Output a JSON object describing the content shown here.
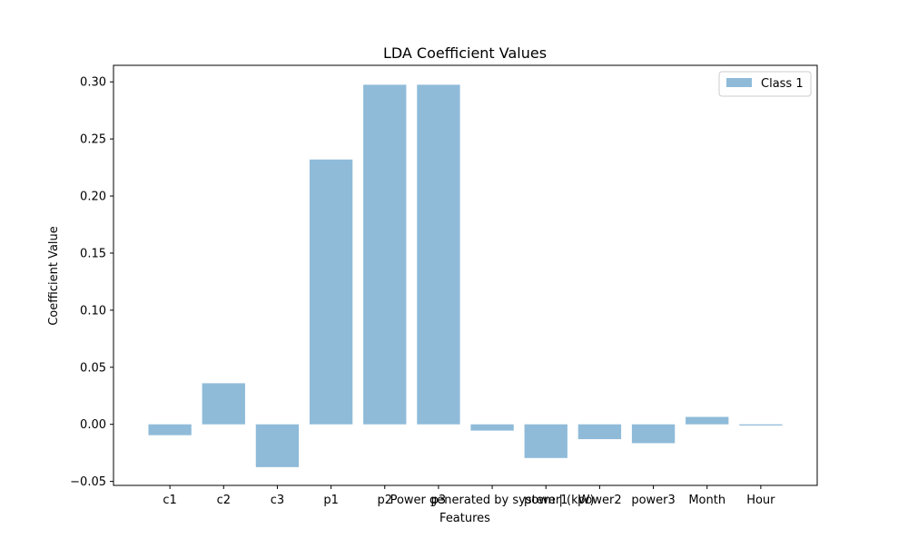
{
  "chart_data": {
    "type": "bar",
    "title": "LDA Coefficient Values",
    "xlabel": "Features",
    "ylabel": "Coefficient Value",
    "categories": [
      "c1",
      "c2",
      "c3",
      "p1",
      "p2",
      "p3",
      "Power generated by system | (kW)",
      "power1",
      "power2",
      "power3",
      "Month",
      "Hour"
    ],
    "series": [
      {
        "name": "Class 1",
        "values": [
          -0.0095,
          0.036,
          -0.0375,
          0.232,
          0.2975,
          0.2975,
          -0.0055,
          -0.0295,
          -0.013,
          -0.0165,
          0.0065,
          -0.001
        ]
      }
    ],
    "ylim": [
      -0.0535,
      0.3145
    ],
    "yticks": [
      -0.05,
      0.0,
      0.05,
      0.1,
      0.15,
      0.2,
      0.25,
      0.3
    ],
    "ytick_labels": [
      "−0.05",
      "0.00",
      "0.05",
      "0.10",
      "0.15",
      "0.20",
      "0.25",
      "0.30"
    ],
    "grid": false,
    "legend_position": "top-right",
    "bar_color": "#8fbbd9"
  }
}
